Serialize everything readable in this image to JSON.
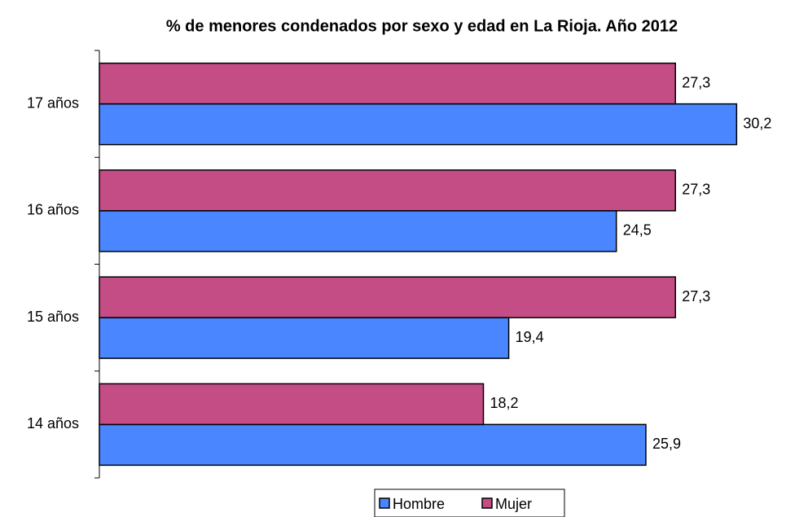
{
  "chart_data": {
    "type": "hbar",
    "title": "% de menores condenados por sexo y edad en La Rioja. Año 2012",
    "categories": [
      "14 años",
      "15 años",
      "16 años",
      "17 años"
    ],
    "series": [
      {
        "name": "Hombre",
        "color": "#4a86ff",
        "values": [
          25.9,
          19.4,
          24.5,
          30.2
        ],
        "value_labels": [
          "25,9",
          "19,4",
          "24,5",
          "30,2"
        ]
      },
      {
        "name": "Mujer",
        "color": "#c44d86",
        "values": [
          18.2,
          27.3,
          27.3,
          27.3
        ],
        "value_labels": [
          "18,2",
          "27,3",
          "27,3",
          "27,3"
        ]
      }
    ],
    "xlim": [
      0,
      32
    ]
  }
}
